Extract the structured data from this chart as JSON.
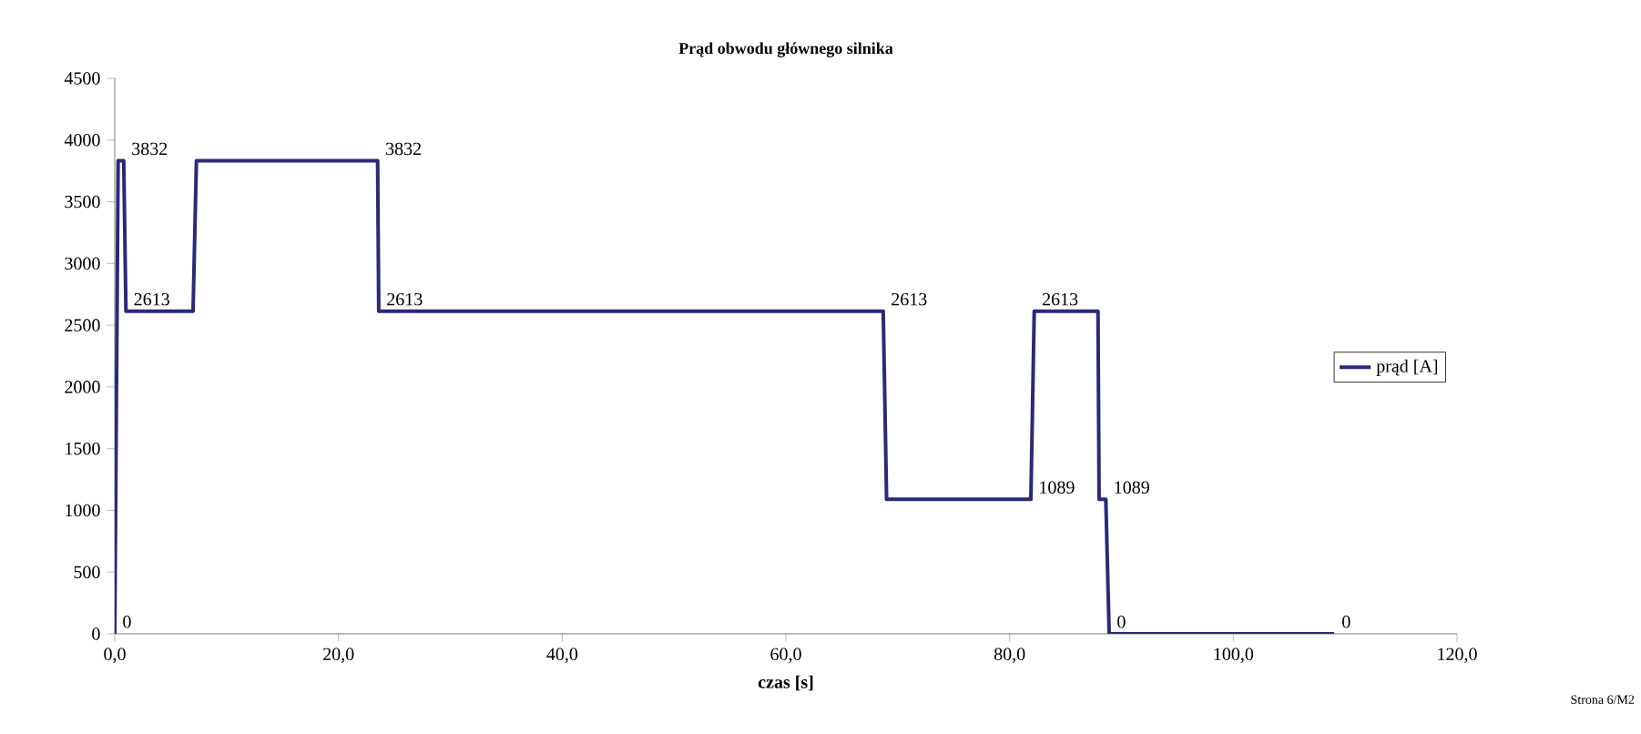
{
  "chart_data": {
    "type": "line",
    "title": "Prąd obwodu głównego silnika",
    "xlabel": "czas [s]",
    "annotations": [
      "Strona 6/M2"
    ],
    "x": [
      0,
      0.3,
      0.8,
      1.0,
      7.0,
      7.3,
      23.5,
      23.6,
      68.7,
      69.0,
      81.9,
      82.2,
      87.9,
      88.0,
      88.6,
      88.9,
      109
    ],
    "series": [
      {
        "name": "prąd [A]",
        "color": "#2a2a7a",
        "values": [
          0,
          3832,
          3832,
          2613,
          2613,
          3832,
          3832,
          2613,
          2613,
          1089,
          1089,
          2613,
          2613,
          1089,
          1089,
          0,
          0
        ],
        "value_labels": [
          "0",
          null,
          "3832",
          "2613",
          null,
          null,
          "3832",
          "2613",
          "2613",
          null,
          "1089",
          "2613",
          null,
          null,
          "1089",
          "0",
          "0"
        ]
      }
    ],
    "xlim": [
      0,
      120
    ],
    "ylim": [
      0,
      4500
    ],
    "xticks": [
      {
        "value": 0,
        "label": "0,0"
      },
      {
        "value": 20,
        "label": "20,0"
      },
      {
        "value": 40,
        "label": "40,0"
      },
      {
        "value": 60,
        "label": "60,0"
      },
      {
        "value": 80,
        "label": "80,0"
      },
      {
        "value": 100,
        "label": "100,0"
      },
      {
        "value": 120,
        "label": "120,0"
      }
    ],
    "yticks": [
      0,
      500,
      1000,
      1500,
      2000,
      2500,
      3000,
      3500,
      4000,
      4500
    ],
    "grid": false,
    "legend": "right",
    "marker": "none",
    "line_style": "solid"
  }
}
